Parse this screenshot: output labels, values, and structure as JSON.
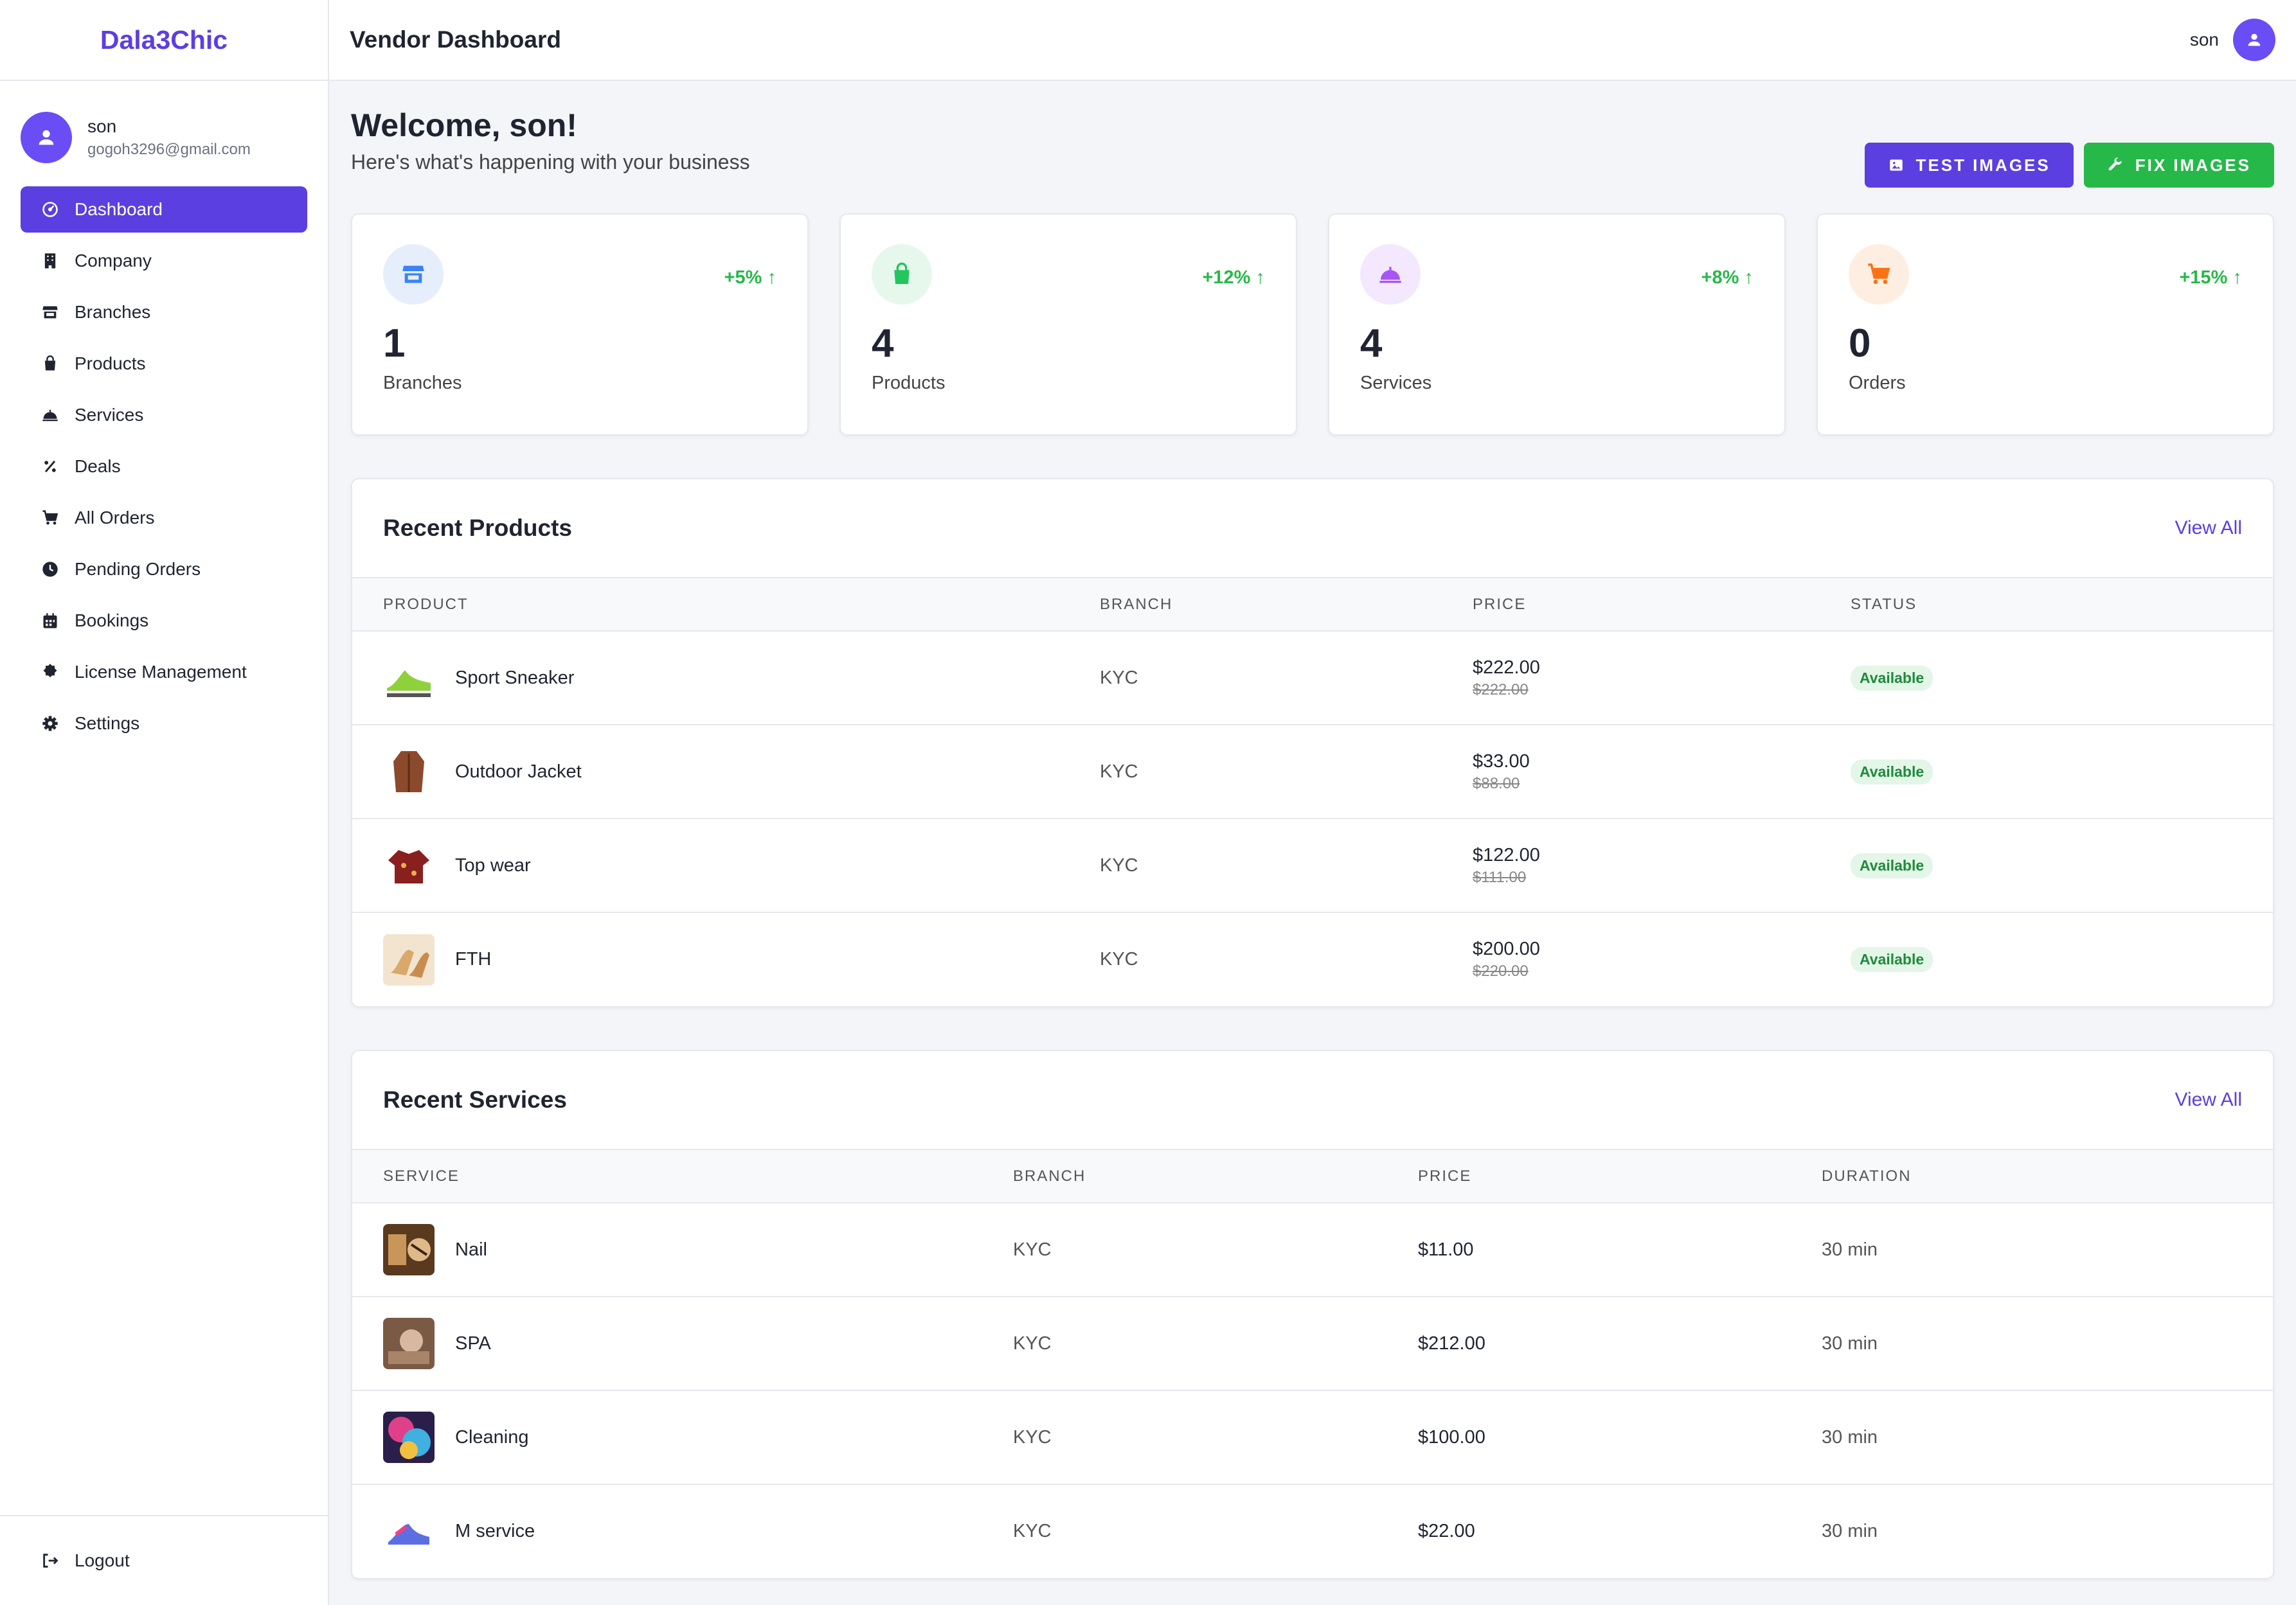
{
  "brand": "Dala3Chic",
  "topbar": {
    "title": "Vendor Dashboard",
    "username": "son"
  },
  "user": {
    "name": "son",
    "email": "gogoh3296@gmail.com"
  },
  "nav": [
    {
      "label": "Dashboard",
      "icon": "dashboard-icon",
      "active": true
    },
    {
      "label": "Company",
      "icon": "building-icon"
    },
    {
      "label": "Branches",
      "icon": "store-icon"
    },
    {
      "label": "Products",
      "icon": "shopping-bag-icon"
    },
    {
      "label": "Services",
      "icon": "service-bell-icon"
    },
    {
      "label": "Deals",
      "icon": "percent-icon"
    },
    {
      "label": "All Orders",
      "icon": "cart-icon"
    },
    {
      "label": "Pending Orders",
      "icon": "clock-icon"
    },
    {
      "label": "Bookings",
      "icon": "calendar-icon"
    },
    {
      "label": "License Management",
      "icon": "certificate-icon"
    },
    {
      "label": "Settings",
      "icon": "gear-icon"
    }
  ],
  "logout_label": "Logout",
  "welcome": {
    "title": "Welcome, son!",
    "subtitle": "Here's what's happening with your business"
  },
  "actions": {
    "test_images": "TEST IMAGES",
    "fix_images": "FIX IMAGES"
  },
  "stats": [
    {
      "value": "1",
      "label": "Branches",
      "change": "+5% ↑",
      "icon": "store-icon",
      "color": "#3b82f6",
      "bg": "#e6eefc"
    },
    {
      "value": "4",
      "label": "Products",
      "change": "+12% ↑",
      "icon": "shopping-bag-icon",
      "color": "#22c55e",
      "bg": "#e6f8ec"
    },
    {
      "value": "4",
      "label": "Services",
      "change": "+8% ↑",
      "icon": "service-bell-icon",
      "color": "#a855f7",
      "bg": "#f3e8fd"
    },
    {
      "value": "0",
      "label": "Orders",
      "change": "+15% ↑",
      "icon": "cart-icon",
      "color": "#f97316",
      "bg": "#feeee2"
    }
  ],
  "recent_products": {
    "title": "Recent Products",
    "view_all": "View All",
    "columns": [
      "PRODUCT",
      "BRANCH",
      "PRICE",
      "STATUS"
    ],
    "rows": [
      {
        "name": "Sport Sneaker",
        "branch": "KYC",
        "price": "$222.00",
        "old_price": "$222.00",
        "status": "Available"
      },
      {
        "name": "Outdoor Jacket",
        "branch": "KYC",
        "price": "$33.00",
        "old_price": "$88.00",
        "status": "Available"
      },
      {
        "name": "Top wear",
        "branch": "KYC",
        "price": "$122.00",
        "old_price": "$111.00",
        "status": "Available"
      },
      {
        "name": "FTH",
        "branch": "KYC",
        "price": "$200.00",
        "old_price": "$220.00",
        "status": "Available"
      }
    ]
  },
  "recent_services": {
    "title": "Recent Services",
    "view_all": "View All",
    "columns": [
      "SERVICE",
      "BRANCH",
      "PRICE",
      "DURATION"
    ],
    "rows": [
      {
        "name": "Nail",
        "branch": "KYC",
        "price": "$11.00",
        "duration": "30 min"
      },
      {
        "name": "SPA",
        "branch": "KYC",
        "price": "$212.00",
        "duration": "30 min"
      },
      {
        "name": "Cleaning",
        "branch": "KYC",
        "price": "$100.00",
        "duration": "30 min"
      },
      {
        "name": "M service",
        "branch": "KYC",
        "price": "$22.00",
        "duration": "30 min"
      }
    ]
  }
}
